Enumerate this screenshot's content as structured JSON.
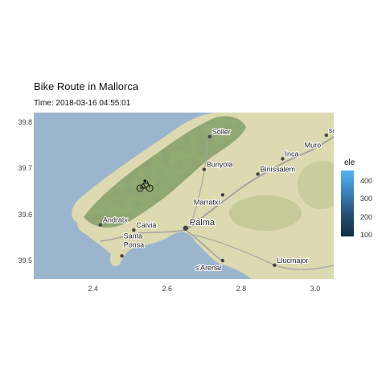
{
  "title": "Bike Route in Mallorca",
  "subtitle": "Time: 2018-03-16 04:55:01",
  "map": {
    "x_range": [
      2.24,
      3.05
    ],
    "y_range": [
      39.46,
      39.82
    ],
    "x_ticks": [
      2.4,
      2.6,
      2.8,
      3.0
    ],
    "y_ticks": [
      39.5,
      39.6,
      39.7,
      39.8
    ],
    "x_tick_labels": [
      "2.4",
      "2.6",
      "2.8",
      "3.0"
    ],
    "y_tick_labels": [
      "39.5",
      "39.6",
      "39.7",
      "39.8"
    ],
    "colors": {
      "sea": "#9bb5cf",
      "land": "#ddd9b0",
      "mountain": "#8aa56a",
      "road": "#a3a3a3",
      "city": "#444444"
    }
  },
  "legend": {
    "title": "ele",
    "range": [
      90,
      460
    ],
    "ticks": [
      100,
      200,
      300,
      400
    ],
    "tick_labels": [
      "100",
      "200",
      "300",
      "400"
    ],
    "colors": [
      "#132b43",
      "#56b1f7"
    ]
  },
  "places": [
    {
      "name": "Sóller",
      "lon": 2.715,
      "lat": 39.768,
      "size": "small"
    },
    {
      "name": "sa",
      "lon": 3.03,
      "lat": 39.771,
      "size": "small"
    },
    {
      "name": "Inca",
      "lon": 2.912,
      "lat": 39.72,
      "size": "small"
    },
    {
      "name": "Muro",
      "lon": 3.01,
      "lat": 39.72,
      "size": "label"
    },
    {
      "name": "Bunyola",
      "lon": 2.7,
      "lat": 39.697,
      "size": "small"
    },
    {
      "name": "Binissalem",
      "lon": 2.845,
      "lat": 39.687,
      "size": "small"
    },
    {
      "name": "Marratxí",
      "lon": 2.75,
      "lat": 39.642,
      "size": "small"
    },
    {
      "name": "Andratx",
      "lon": 2.42,
      "lat": 39.577,
      "size": "small"
    },
    {
      "name": "Calvià",
      "lon": 2.51,
      "lat": 39.566,
      "size": "small"
    },
    {
      "name": "Palma",
      "lon": 2.65,
      "lat": 39.57,
      "size": "big"
    },
    {
      "name": "Santa Ponsa",
      "lon": 2.478,
      "lat": 39.51,
      "size": "small"
    },
    {
      "name": "s'Arenal",
      "lon": 2.75,
      "lat": 39.5,
      "size": "small"
    },
    {
      "name": "Llucmajor",
      "lon": 2.89,
      "lat": 39.49,
      "size": "small"
    }
  ],
  "rider": {
    "lon": 2.54,
    "lat": 39.66,
    "icon": "bicycle-icon"
  }
}
